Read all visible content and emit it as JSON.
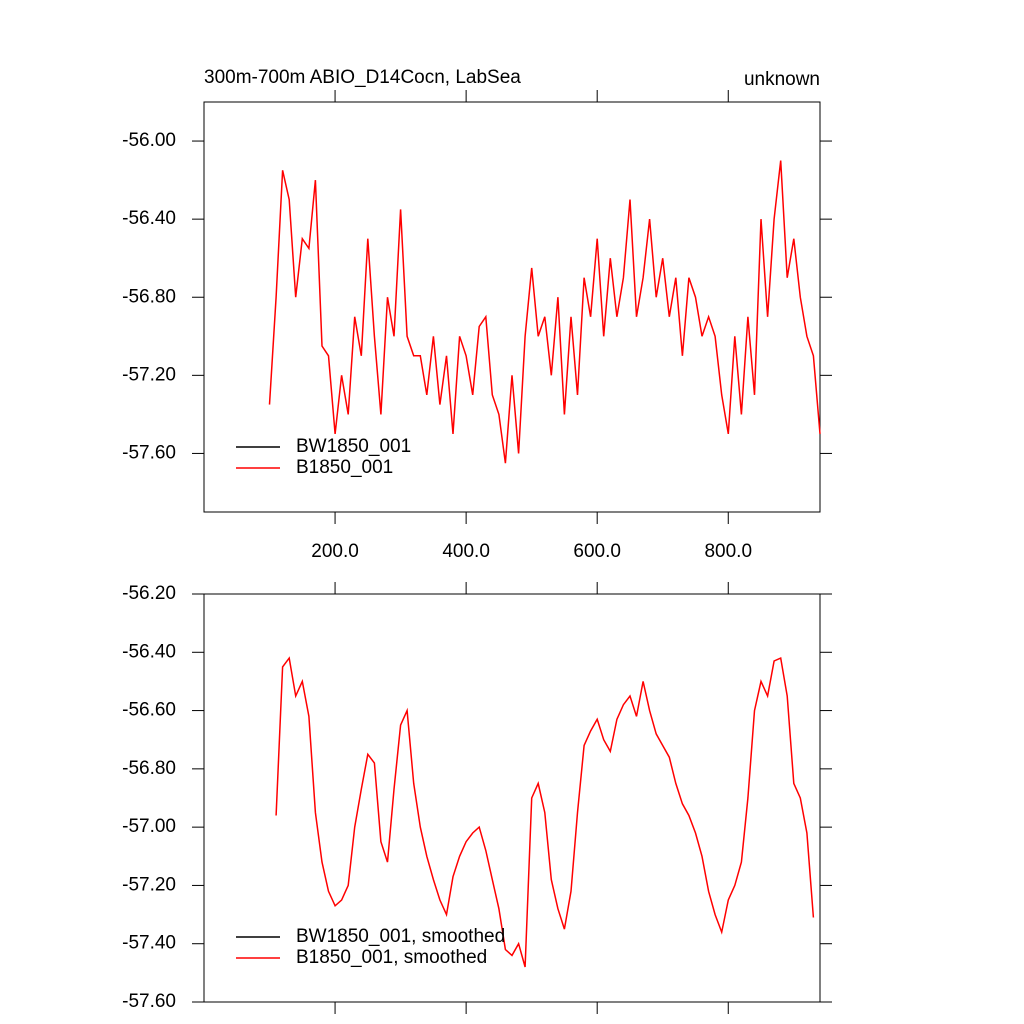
{
  "chart_data": [
    {
      "type": "line",
      "title": "300m-700m ABIO_D14Cocn, LabSea",
      "right_title": "unknown",
      "x": [
        100,
        110,
        120,
        130,
        140,
        150,
        160,
        170,
        180,
        190,
        200,
        210,
        220,
        230,
        240,
        250,
        260,
        270,
        280,
        290,
        300,
        310,
        320,
        330,
        340,
        350,
        360,
        370,
        380,
        390,
        400,
        410,
        420,
        430,
        440,
        450,
        460,
        470,
        480,
        490,
        500,
        510,
        520,
        530,
        540,
        550,
        560,
        570,
        580,
        590,
        600,
        610,
        620,
        630,
        640,
        650,
        660,
        670,
        680,
        690,
        700,
        710,
        720,
        730,
        740,
        750,
        760,
        770,
        780,
        790,
        800,
        810,
        820,
        830,
        840,
        850,
        860,
        870,
        880,
        890,
        900,
        910,
        920,
        930,
        940
      ],
      "series": [
        {
          "name": "BW1850_001",
          "color": "#000000",
          "values": [
            null,
            null,
            null,
            null,
            null,
            null,
            null,
            null,
            null,
            null,
            null,
            null,
            null,
            null,
            null,
            null,
            null,
            null,
            null,
            null,
            null,
            null,
            null,
            null,
            null,
            null,
            null,
            null,
            null,
            null,
            null,
            null,
            null,
            null,
            null,
            null,
            null,
            null,
            null,
            null,
            null,
            null,
            null,
            null,
            null,
            null,
            null,
            null,
            null,
            null,
            null,
            null,
            null,
            null,
            null,
            null,
            null,
            null,
            null,
            null,
            null,
            null,
            null,
            null,
            null,
            null,
            null,
            null,
            null,
            null,
            null,
            null,
            null,
            null,
            null,
            null,
            null,
            null,
            null,
            null,
            null,
            null,
            null,
            null,
            null
          ]
        },
        {
          "name": "B1850_001",
          "color": "#ff0000",
          "values": [
            -57.35,
            -56.8,
            -56.15,
            -56.3,
            -56.8,
            -56.5,
            -56.55,
            -56.2,
            -57.05,
            -57.1,
            -57.5,
            -57.2,
            -57.4,
            -56.9,
            -57.1,
            -56.5,
            -57.0,
            -57.4,
            -56.8,
            -57.0,
            -56.35,
            -57.0,
            -57.1,
            -57.1,
            -57.3,
            -57.0,
            -57.35,
            -57.1,
            -57.5,
            -57.0,
            -57.1,
            -57.3,
            -56.95,
            -56.9,
            -57.3,
            -57.4,
            -57.65,
            -57.2,
            -57.6,
            -57.0,
            -56.65,
            -57.0,
            -56.9,
            -57.2,
            -56.8,
            -57.4,
            -56.9,
            -57.3,
            -56.7,
            -56.9,
            -56.5,
            -57.0,
            -56.6,
            -56.9,
            -56.7,
            -56.3,
            -56.9,
            -56.7,
            -56.4,
            -56.8,
            -56.6,
            -56.9,
            -56.7,
            -57.1,
            -56.7,
            -56.8,
            -57.0,
            -56.9,
            -57.0,
            -57.3,
            -57.5,
            -57.0,
            -57.4,
            -56.9,
            -57.3,
            -56.4,
            -56.9,
            -56.4,
            -56.1,
            -56.7,
            -56.5,
            -56.8,
            -57.0,
            -57.1,
            -57.5
          ]
        }
      ],
      "xlim": [
        0,
        940
      ],
      "ylim": [
        -57.9,
        -55.8
      ],
      "xticks": [
        {
          "value": 200,
          "label": "200.0"
        },
        {
          "value": 400,
          "label": "400.0"
        },
        {
          "value": 600,
          "label": "600.0"
        },
        {
          "value": 800,
          "label": "800.0"
        }
      ],
      "xtick_labels": true,
      "yticks": [
        {
          "value": -56.0,
          "label": "-56.00"
        },
        {
          "value": -56.4,
          "label": "-56.40"
        },
        {
          "value": -56.8,
          "label": "-56.80"
        },
        {
          "value": -57.2,
          "label": "-57.20"
        },
        {
          "value": -57.6,
          "label": "-57.60"
        }
      ],
      "legend": "lower left"
    },
    {
      "type": "line",
      "x": [
        110,
        120,
        130,
        140,
        150,
        160,
        170,
        180,
        190,
        200,
        210,
        220,
        230,
        240,
        250,
        260,
        270,
        280,
        290,
        300,
        310,
        320,
        330,
        340,
        350,
        360,
        370,
        380,
        390,
        400,
        410,
        420,
        430,
        440,
        450,
        460,
        470,
        480,
        490,
        500,
        510,
        520,
        530,
        540,
        550,
        560,
        570,
        580,
        590,
        600,
        610,
        620,
        630,
        640,
        650,
        660,
        670,
        680,
        690,
        700,
        710,
        720,
        730,
        740,
        750,
        760,
        770,
        780,
        790,
        800,
        810,
        820,
        830,
        840,
        850,
        860,
        870,
        880,
        890,
        900,
        910,
        920,
        930
      ],
      "series": [
        {
          "name": "BW1850_001, smoothed",
          "color": "#000000",
          "values": [
            null,
            null,
            null,
            null,
            null,
            null,
            null,
            null,
            null,
            null,
            null,
            null,
            null,
            null,
            null,
            null,
            null,
            null,
            null,
            null,
            null,
            null,
            null,
            null,
            null,
            null,
            null,
            null,
            null,
            null,
            null,
            null,
            null,
            null,
            null,
            null,
            null,
            null,
            null,
            null,
            null,
            null,
            null,
            null,
            null,
            null,
            null,
            null,
            null,
            null,
            null,
            null,
            null,
            null,
            null,
            null,
            null,
            null,
            null,
            null,
            null,
            null,
            null,
            null,
            null,
            null,
            null,
            null,
            null,
            null,
            null,
            null,
            null,
            null,
            null,
            null,
            null,
            null,
            null,
            null,
            null,
            null,
            null
          ]
        },
        {
          "name": "B1850_001, smoothed",
          "color": "#ff0000",
          "values": [
            -56.96,
            -56.45,
            -56.42,
            -56.55,
            -56.5,
            -56.62,
            -56.95,
            -57.12,
            -57.22,
            -57.27,
            -57.25,
            -57.2,
            -57.0,
            -56.87,
            -56.75,
            -56.78,
            -57.05,
            -57.12,
            -56.87,
            -56.65,
            -56.6,
            -56.85,
            -57.0,
            -57.1,
            -57.18,
            -57.25,
            -57.3,
            -57.17,
            -57.1,
            -57.05,
            -57.02,
            -57.0,
            -57.08,
            -57.18,
            -57.28,
            -57.42,
            -57.44,
            -57.4,
            -57.48,
            -56.9,
            -56.85,
            -56.95,
            -57.18,
            -57.28,
            -57.35,
            -57.22,
            -56.95,
            -56.72,
            -56.67,
            -56.63,
            -56.7,
            -56.74,
            -56.63,
            -56.58,
            -56.55,
            -56.62,
            -56.5,
            -56.6,
            -56.68,
            -56.72,
            -56.76,
            -56.85,
            -56.92,
            -56.96,
            -57.02,
            -57.1,
            -57.22,
            -57.3,
            -57.36,
            -57.25,
            -57.2,
            -57.12,
            -56.9,
            -56.6,
            -56.5,
            -56.55,
            -56.43,
            -56.42,
            -56.55,
            -56.85,
            -56.9,
            -57.02,
            -57.31
          ]
        }
      ],
      "xlim": [
        0,
        940
      ],
      "ylim": [
        -57.6,
        -56.2
      ],
      "xticks": [
        200,
        400,
        600,
        800
      ],
      "xtick_labels": false,
      "yticks": [
        {
          "value": -56.2,
          "label": "-56.20"
        },
        {
          "value": -56.4,
          "label": "-56.40"
        },
        {
          "value": -56.6,
          "label": "-56.60"
        },
        {
          "value": -56.8,
          "label": "-56.80"
        },
        {
          "value": -57.0,
          "label": "-57.00"
        },
        {
          "value": -57.2,
          "label": "-57.20"
        },
        {
          "value": -57.4,
          "label": "-57.40"
        },
        {
          "value": -57.6,
          "label": "-57.60"
        }
      ],
      "legend": "lower left"
    }
  ]
}
